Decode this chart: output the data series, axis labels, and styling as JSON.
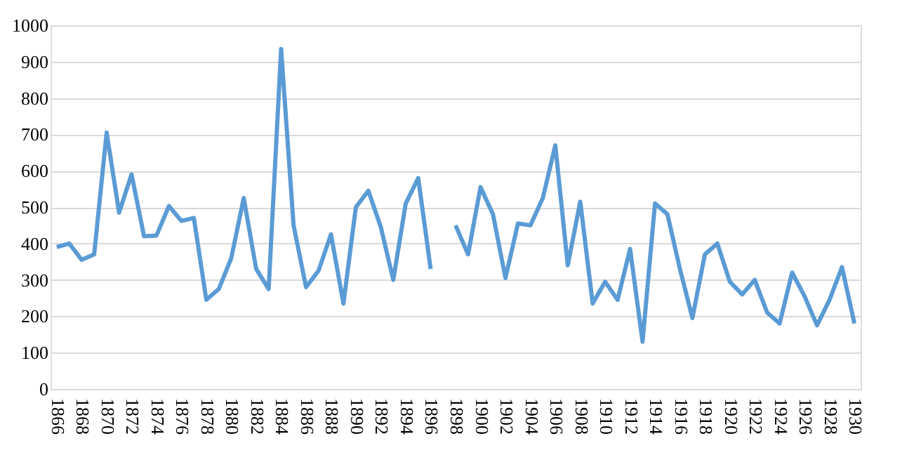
{
  "chart_data": {
    "type": "line",
    "categories": [
      "1866",
      null,
      "1868",
      null,
      "1870",
      null,
      "1872",
      null,
      "1874",
      null,
      "1876",
      null,
      "1878",
      null,
      "1880",
      null,
      "1882",
      null,
      "1884",
      null,
      "1886",
      null,
      "1888",
      null,
      "1890",
      null,
      "1892",
      null,
      "1894",
      null,
      "1896",
      null,
      "1898",
      null,
      "1900",
      null,
      "1902",
      null,
      "1904",
      null,
      "1906",
      null,
      "1908",
      null,
      "1910",
      null,
      "1912",
      null,
      "1914",
      null,
      "1916",
      null,
      "1918",
      null,
      "1920",
      null,
      "1922",
      null,
      "1924",
      null,
      "1926",
      null,
      "1928",
      null,
      "1930"
    ],
    "series": [
      {
        "color": "#5b9bd5",
        "values": [
          390,
          400,
          355,
          370,
          705,
          485,
          590,
          420,
          422,
          503,
          462,
          470,
          245,
          275,
          360,
          525,
          330,
          275,
          935,
          450,
          280,
          325,
          425,
          235,
          500,
          545,
          445,
          300,
          510,
          580,
          330,
          null,
          450,
          370,
          555,
          480,
          305,
          455,
          450,
          525,
          670,
          340,
          515,
          235,
          295,
          245,
          385,
          130,
          510,
          480,
          330,
          195,
          370,
          400,
          295,
          260,
          300,
          210,
          180,
          320,
          255,
          175,
          245,
          335,
          180
        ]
      }
    ],
    "ylim": [
      0,
      1000
    ],
    "yticks": [
      0,
      100,
      200,
      300,
      400,
      500,
      600,
      700,
      800,
      900,
      1000
    ],
    "grid": "y",
    "line_style": "solid",
    "marker": "none"
  }
}
